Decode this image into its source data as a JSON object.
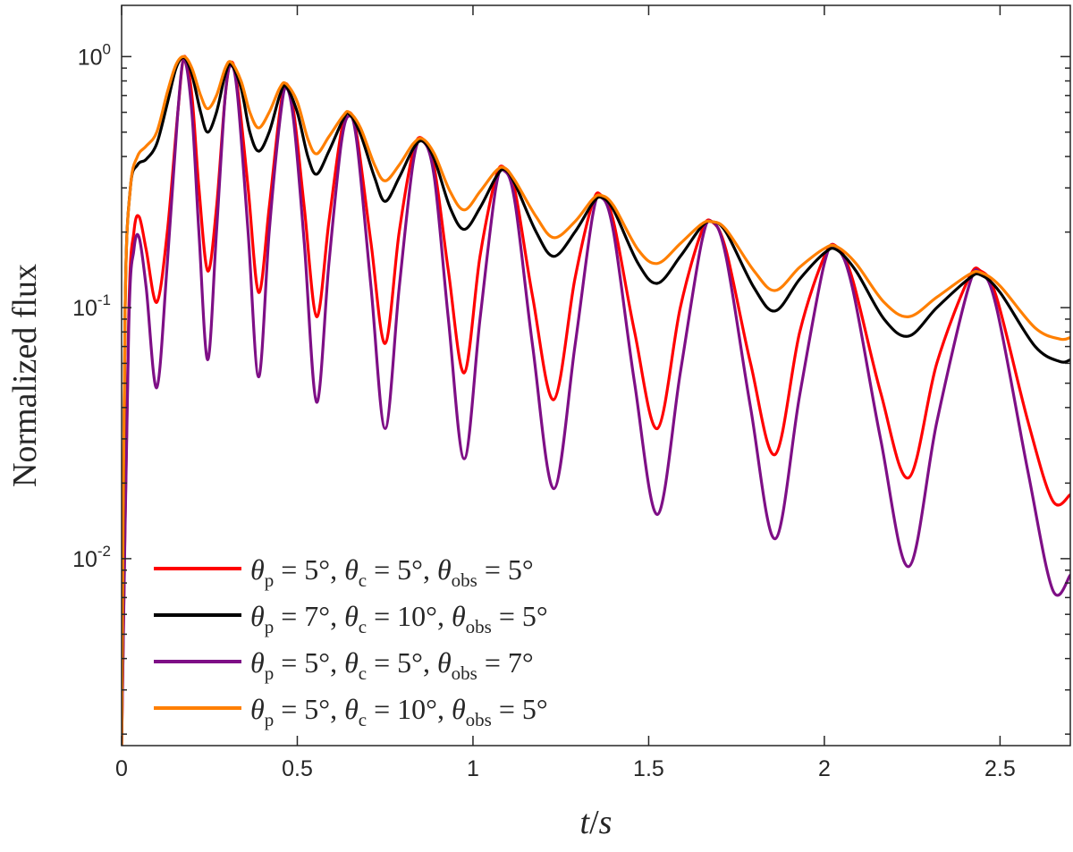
{
  "chart_data": {
    "type": "line",
    "title": "",
    "xlabel": "t/s",
    "ylabel": "Normalized flux",
    "xlim": [
      0,
      2.7
    ],
    "ylim": [
      0.0018,
      1.6
    ],
    "yscale": "log",
    "x_ticks": [
      0,
      0.5,
      1,
      1.5,
      2,
      2.5
    ],
    "x_tick_labels": [
      "0",
      "0.5",
      "1",
      "1.5",
      "2",
      "2.5"
    ],
    "y_ticks": [
      0.01,
      0.1,
      1
    ],
    "y_tick_labels": [
      {
        "base": "10",
        "exp": "-2"
      },
      {
        "base": "10",
        "exp": "-1"
      },
      {
        "base": "10",
        "exp": "0"
      }
    ],
    "grid": false,
    "legend_position": "bottom-left",
    "series": [
      {
        "name": "θp = 5°, θc = 5°, θobs = 5°",
        "legend": {
          "a": "5°",
          "b": "5°",
          "c": "5°"
        },
        "color": "#ff0000",
        "points": [
          [
            0,
            0.0018
          ],
          [
            0.02,
            0.09
          ],
          [
            0.035,
            0.2
          ],
          [
            0.05,
            0.23
          ],
          [
            0.07,
            0.17
          ],
          [
            0.1,
            0.105
          ],
          [
            0.13,
            0.2
          ],
          [
            0.16,
            0.6
          ],
          [
            0.178,
            1.0
          ],
          [
            0.2,
            0.7
          ],
          [
            0.22,
            0.3
          ],
          [
            0.245,
            0.14
          ],
          [
            0.27,
            0.25
          ],
          [
            0.295,
            0.7
          ],
          [
            0.312,
            0.95
          ],
          [
            0.33,
            0.75
          ],
          [
            0.36,
            0.3
          ],
          [
            0.39,
            0.115
          ],
          [
            0.42,
            0.25
          ],
          [
            0.45,
            0.6
          ],
          [
            0.468,
            0.78
          ],
          [
            0.49,
            0.6
          ],
          [
            0.52,
            0.25
          ],
          [
            0.555,
            0.092
          ],
          [
            0.59,
            0.22
          ],
          [
            0.625,
            0.5
          ],
          [
            0.648,
            0.6
          ],
          [
            0.67,
            0.48
          ],
          [
            0.71,
            0.18
          ],
          [
            0.75,
            0.072
          ],
          [
            0.79,
            0.2
          ],
          [
            0.83,
            0.42
          ],
          [
            0.857,
            0.47
          ],
          [
            0.89,
            0.36
          ],
          [
            0.93,
            0.14
          ],
          [
            0.975,
            0.055
          ],
          [
            1.02,
            0.16
          ],
          [
            1.065,
            0.33
          ],
          [
            1.09,
            0.36
          ],
          [
            1.12,
            0.29
          ],
          [
            1.17,
            0.11
          ],
          [
            1.23,
            0.043
          ],
          [
            1.29,
            0.13
          ],
          [
            1.34,
            0.26
          ],
          [
            1.365,
            0.28
          ],
          [
            1.4,
            0.22
          ],
          [
            1.46,
            0.08
          ],
          [
            1.525,
            0.033
          ],
          [
            1.59,
            0.1
          ],
          [
            1.65,
            0.2
          ],
          [
            1.68,
            0.22
          ],
          [
            1.72,
            0.17
          ],
          [
            1.79,
            0.06
          ],
          [
            1.86,
            0.026
          ],
          [
            1.93,
            0.08
          ],
          [
            2.0,
            0.16
          ],
          [
            2.035,
            0.175
          ],
          [
            2.08,
            0.13
          ],
          [
            2.16,
            0.046
          ],
          [
            2.24,
            0.021
          ],
          [
            2.32,
            0.06
          ],
          [
            2.41,
            0.13
          ],
          [
            2.445,
            0.14
          ],
          [
            2.49,
            0.11
          ],
          [
            2.58,
            0.035
          ],
          [
            2.65,
            0.017
          ],
          [
            2.7,
            0.018
          ]
        ]
      },
      {
        "name": "θp = 7°, θc = 10°, θobs = 5°",
        "legend": {
          "a": "7°",
          "b": "10°",
          "c": "5°"
        },
        "color": "#000000",
        "points": [
          [
            0,
            0.0018
          ],
          [
            0.01,
            0.1
          ],
          [
            0.025,
            0.3
          ],
          [
            0.045,
            0.37
          ],
          [
            0.07,
            0.39
          ],
          [
            0.1,
            0.45
          ],
          [
            0.13,
            0.65
          ],
          [
            0.155,
            0.9
          ],
          [
            0.178,
            0.99
          ],
          [
            0.2,
            0.85
          ],
          [
            0.225,
            0.6
          ],
          [
            0.245,
            0.5
          ],
          [
            0.27,
            0.6
          ],
          [
            0.295,
            0.85
          ],
          [
            0.312,
            0.93
          ],
          [
            0.34,
            0.75
          ],
          [
            0.365,
            0.5
          ],
          [
            0.39,
            0.42
          ],
          [
            0.42,
            0.5
          ],
          [
            0.45,
            0.7
          ],
          [
            0.468,
            0.76
          ],
          [
            0.5,
            0.6
          ],
          [
            0.53,
            0.4
          ],
          [
            0.555,
            0.34
          ],
          [
            0.59,
            0.42
          ],
          [
            0.63,
            0.56
          ],
          [
            0.648,
            0.59
          ],
          [
            0.68,
            0.49
          ],
          [
            0.72,
            0.33
          ],
          [
            0.75,
            0.265
          ],
          [
            0.79,
            0.33
          ],
          [
            0.83,
            0.43
          ],
          [
            0.857,
            0.46
          ],
          [
            0.89,
            0.39
          ],
          [
            0.935,
            0.25
          ],
          [
            0.975,
            0.205
          ],
          [
            1.02,
            0.25
          ],
          [
            1.065,
            0.33
          ],
          [
            1.09,
            0.355
          ],
          [
            1.12,
            0.31
          ],
          [
            1.18,
            0.2
          ],
          [
            1.23,
            0.16
          ],
          [
            1.29,
            0.2
          ],
          [
            1.34,
            0.26
          ],
          [
            1.365,
            0.275
          ],
          [
            1.4,
            0.245
          ],
          [
            1.47,
            0.15
          ],
          [
            1.525,
            0.125
          ],
          [
            1.59,
            0.16
          ],
          [
            1.65,
            0.21
          ],
          [
            1.68,
            0.22
          ],
          [
            1.72,
            0.2
          ],
          [
            1.8,
            0.12
          ],
          [
            1.86,
            0.097
          ],
          [
            1.93,
            0.13
          ],
          [
            2.0,
            0.165
          ],
          [
            2.035,
            0.17
          ],
          [
            2.09,
            0.14
          ],
          [
            2.17,
            0.09
          ],
          [
            2.24,
            0.077
          ],
          [
            2.32,
            0.1
          ],
          [
            2.41,
            0.13
          ],
          [
            2.445,
            0.135
          ],
          [
            2.5,
            0.115
          ],
          [
            2.6,
            0.07
          ],
          [
            2.67,
            0.061
          ],
          [
            2.7,
            0.062
          ]
        ]
      },
      {
        "name": "θp = 5°, θc = 5°, θobs = 7°",
        "legend": {
          "a": "5°",
          "b": "5°",
          "c": "7°"
        },
        "color": "#7e0f86",
        "points": [
          [
            0,
            0.0018
          ],
          [
            0.02,
            0.08
          ],
          [
            0.035,
            0.17
          ],
          [
            0.05,
            0.19
          ],
          [
            0.07,
            0.12
          ],
          [
            0.1,
            0.048
          ],
          [
            0.13,
            0.15
          ],
          [
            0.16,
            0.6
          ],
          [
            0.178,
            0.97
          ],
          [
            0.2,
            0.6
          ],
          [
            0.22,
            0.2
          ],
          [
            0.245,
            0.062
          ],
          [
            0.27,
            0.2
          ],
          [
            0.295,
            0.7
          ],
          [
            0.312,
            0.92
          ],
          [
            0.33,
            0.7
          ],
          [
            0.36,
            0.2
          ],
          [
            0.39,
            0.053
          ],
          [
            0.42,
            0.2
          ],
          [
            0.45,
            0.55
          ],
          [
            0.468,
            0.75
          ],
          [
            0.49,
            0.55
          ],
          [
            0.52,
            0.18
          ],
          [
            0.555,
            0.042
          ],
          [
            0.59,
            0.15
          ],
          [
            0.625,
            0.45
          ],
          [
            0.648,
            0.58
          ],
          [
            0.67,
            0.45
          ],
          [
            0.71,
            0.12
          ],
          [
            0.75,
            0.033
          ],
          [
            0.79,
            0.12
          ],
          [
            0.83,
            0.38
          ],
          [
            0.857,
            0.46
          ],
          [
            0.89,
            0.33
          ],
          [
            0.93,
            0.09
          ],
          [
            0.975,
            0.025
          ],
          [
            1.02,
            0.09
          ],
          [
            1.065,
            0.3
          ],
          [
            1.09,
            0.35
          ],
          [
            1.12,
            0.26
          ],
          [
            1.17,
            0.07
          ],
          [
            1.23,
            0.019
          ],
          [
            1.29,
            0.07
          ],
          [
            1.34,
            0.23
          ],
          [
            1.365,
            0.275
          ],
          [
            1.4,
            0.2
          ],
          [
            1.46,
            0.05
          ],
          [
            1.525,
            0.015
          ],
          [
            1.59,
            0.055
          ],
          [
            1.65,
            0.18
          ],
          [
            1.68,
            0.22
          ],
          [
            1.72,
            0.16
          ],
          [
            1.79,
            0.04
          ],
          [
            1.86,
            0.012
          ],
          [
            1.93,
            0.045
          ],
          [
            2.0,
            0.15
          ],
          [
            2.035,
            0.172
          ],
          [
            2.08,
            0.12
          ],
          [
            2.16,
            0.03
          ],
          [
            2.24,
            0.0093
          ],
          [
            2.32,
            0.035
          ],
          [
            2.41,
            0.12
          ],
          [
            2.445,
            0.137
          ],
          [
            2.49,
            0.1
          ],
          [
            2.58,
            0.022
          ],
          [
            2.65,
            0.0075
          ],
          [
            2.7,
            0.0086
          ]
        ]
      },
      {
        "name": "θp = 5°, θc = 10°, θobs = 5°",
        "legend": {
          "a": "5°",
          "b": "10°",
          "c": "5°"
        },
        "color": "#ff7f00",
        "points": [
          [
            0,
            0.0018
          ],
          [
            0.01,
            0.1
          ],
          [
            0.025,
            0.3
          ],
          [
            0.045,
            0.4
          ],
          [
            0.07,
            0.44
          ],
          [
            0.1,
            0.5
          ],
          [
            0.13,
            0.72
          ],
          [
            0.155,
            0.93
          ],
          [
            0.178,
            1.0
          ],
          [
            0.2,
            0.9
          ],
          [
            0.225,
            0.7
          ],
          [
            0.245,
            0.62
          ],
          [
            0.27,
            0.7
          ],
          [
            0.295,
            0.9
          ],
          [
            0.312,
            0.95
          ],
          [
            0.34,
            0.8
          ],
          [
            0.365,
            0.6
          ],
          [
            0.39,
            0.52
          ],
          [
            0.42,
            0.6
          ],
          [
            0.45,
            0.75
          ],
          [
            0.468,
            0.78
          ],
          [
            0.5,
            0.66
          ],
          [
            0.53,
            0.47
          ],
          [
            0.555,
            0.41
          ],
          [
            0.59,
            0.48
          ],
          [
            0.63,
            0.58
          ],
          [
            0.648,
            0.6
          ],
          [
            0.68,
            0.52
          ],
          [
            0.72,
            0.37
          ],
          [
            0.75,
            0.32
          ],
          [
            0.79,
            0.37
          ],
          [
            0.83,
            0.45
          ],
          [
            0.857,
            0.47
          ],
          [
            0.89,
            0.41
          ],
          [
            0.935,
            0.29
          ],
          [
            0.975,
            0.245
          ],
          [
            1.02,
            0.29
          ],
          [
            1.065,
            0.35
          ],
          [
            1.09,
            0.36
          ],
          [
            1.12,
            0.32
          ],
          [
            1.18,
            0.23
          ],
          [
            1.23,
            0.19
          ],
          [
            1.29,
            0.22
          ],
          [
            1.34,
            0.27
          ],
          [
            1.365,
            0.28
          ],
          [
            1.4,
            0.255
          ],
          [
            1.47,
            0.17
          ],
          [
            1.525,
            0.15
          ],
          [
            1.59,
            0.18
          ],
          [
            1.65,
            0.215
          ],
          [
            1.68,
            0.22
          ],
          [
            1.72,
            0.205
          ],
          [
            1.8,
            0.14
          ],
          [
            1.86,
            0.117
          ],
          [
            1.93,
            0.145
          ],
          [
            2.0,
            0.172
          ],
          [
            2.035,
            0.175
          ],
          [
            2.09,
            0.15
          ],
          [
            2.17,
            0.105
          ],
          [
            2.24,
            0.092
          ],
          [
            2.32,
            0.11
          ],
          [
            2.41,
            0.135
          ],
          [
            2.445,
            0.138
          ],
          [
            2.5,
            0.122
          ],
          [
            2.6,
            0.083
          ],
          [
            2.67,
            0.075
          ],
          [
            2.7,
            0.076
          ]
        ]
      }
    ]
  },
  "legend_symbols": {
    "theta": "θ",
    "sub_p": "p",
    "sub_c": "c",
    "sub_obs": "obs",
    "eq": "=",
    "sep": ","
  }
}
